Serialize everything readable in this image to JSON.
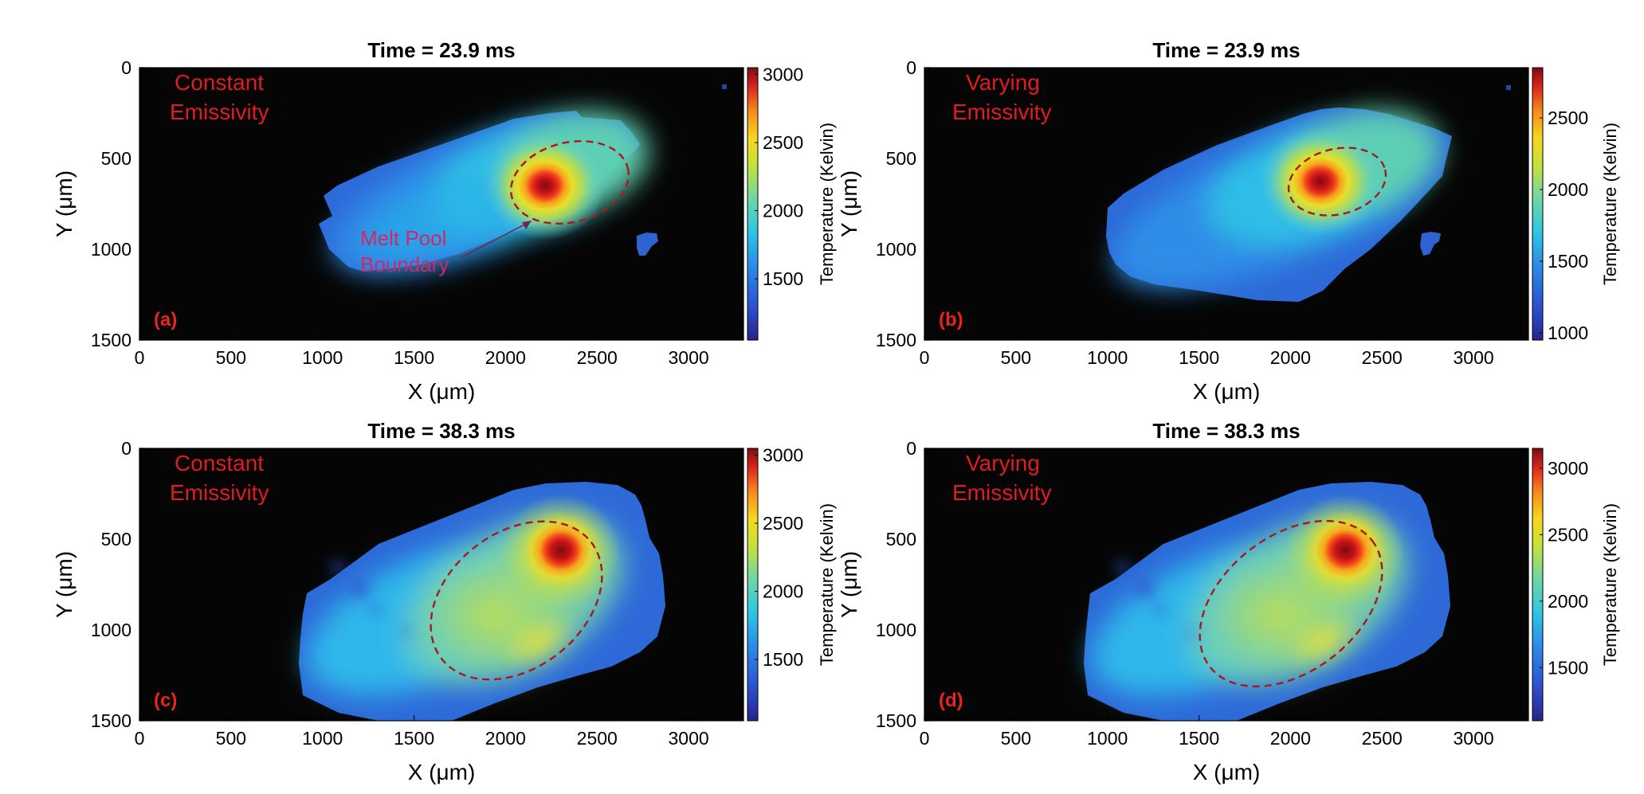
{
  "chart_data": [
    {
      "type": "heatmap",
      "panel_label": "(a)",
      "title": "Time = 23.9 ms",
      "annotation_lines": [
        "Constant",
        "Emissivity"
      ],
      "callout_lines": [
        "Melt Pool",
        "Boundary"
      ],
      "xlabel": "X (μm)",
      "ylabel": "Y (μm)",
      "xlim": [
        0,
        3300
      ],
      "ylim": [
        0,
        1500
      ],
      "y_reversed": true,
      "x_ticks": [
        "0",
        "500",
        "1000",
        "1500",
        "2000",
        "2500",
        "3000"
      ],
      "y_ticks": [
        "0",
        "500",
        "1000",
        "1500"
      ],
      "colorbar": {
        "label": "Temperature (Kelvin)",
        "range": [
          1050,
          3050
        ],
        "ticks": [
          "1500",
          "2000",
          "2500",
          "3000"
        ]
      },
      "hotspot": {
        "x": 2200,
        "y": 660,
        "peak_temperature": 3050
      },
      "melt_pool_boundary": {
        "cx": 2280,
        "cy": 550,
        "rx": 330,
        "ry": 220,
        "rotation_deg": -14
      }
    },
    {
      "type": "heatmap",
      "panel_label": "(b)",
      "title": "Time = 23.9 ms",
      "annotation_lines": [
        "Varying",
        "Emissivity"
      ],
      "xlabel": "X (μm)",
      "ylabel": "Y (μm)",
      "xlim": [
        0,
        3300
      ],
      "ylim": [
        0,
        1500
      ],
      "y_reversed": true,
      "x_ticks": [
        "0",
        "500",
        "1000",
        "1500",
        "2000",
        "2500",
        "3000"
      ],
      "y_ticks": [
        "0",
        "500",
        "1000",
        "1500"
      ],
      "colorbar": {
        "label": "Temperature (Kelvin)",
        "range": [
          950,
          2850
        ],
        "ticks": [
          "1000",
          "1500",
          "2000",
          "2500"
        ]
      },
      "hotspot": {
        "x": 2210,
        "y": 650,
        "peak_temperature": 2850
      },
      "melt_pool_boundary": {
        "cx": 2250,
        "cy": 600,
        "rx": 270,
        "ry": 185,
        "rotation_deg": -14
      }
    },
    {
      "type": "heatmap",
      "panel_label": "(c)",
      "title": "Time = 38.3 ms",
      "annotation_lines": [
        "Constant",
        "Emissivity"
      ],
      "xlabel": "X (μm)",
      "ylabel": "Y (μm)",
      "xlim": [
        0,
        3300
      ],
      "ylim": [
        0,
        1500
      ],
      "y_reversed": true,
      "x_ticks": [
        "0",
        "500",
        "1000",
        "1500",
        "2000",
        "2500",
        "3000"
      ],
      "y_ticks": [
        "0",
        "500",
        "1000",
        "1500"
      ],
      "colorbar": {
        "label": "Temperature (Kelvin)",
        "range": [
          1050,
          3050
        ],
        "ticks": [
          "1500",
          "2000",
          "2500",
          "3000"
        ]
      },
      "hotspot": {
        "x": 2310,
        "y": 590,
        "peak_temperature": 3050
      },
      "melt_pool_boundary": {
        "cx": 2060,
        "cy": 860,
        "rx": 520,
        "ry": 380,
        "rotation_deg": -38
      }
    },
    {
      "type": "heatmap",
      "panel_label": "(d)",
      "title": "Time = 38.3 ms",
      "annotation_lines": [
        "Varying",
        "Emissivity"
      ],
      "xlabel": "X (μm)",
      "ylabel": "Y (μm)",
      "xlim": [
        0,
        3300
      ],
      "ylim": [
        0,
        1500
      ],
      "y_reversed": true,
      "x_ticks": [
        "0",
        "500",
        "1000",
        "1500",
        "2000",
        "2500",
        "3000"
      ],
      "y_ticks": [
        "0",
        "500",
        "1000",
        "1500"
      ],
      "colorbar": {
        "label": "Temperature (Kelvin)",
        "range": [
          1100,
          3150
        ],
        "ticks": [
          "1500",
          "2000",
          "2500",
          "3000"
        ]
      },
      "hotspot": {
        "x": 2310,
        "y": 590,
        "peak_temperature": 3150
      },
      "melt_pool_boundary": {
        "cx": 2030,
        "cy": 880,
        "rx": 560,
        "ry": 380,
        "rotation_deg": -38
      }
    }
  ]
}
